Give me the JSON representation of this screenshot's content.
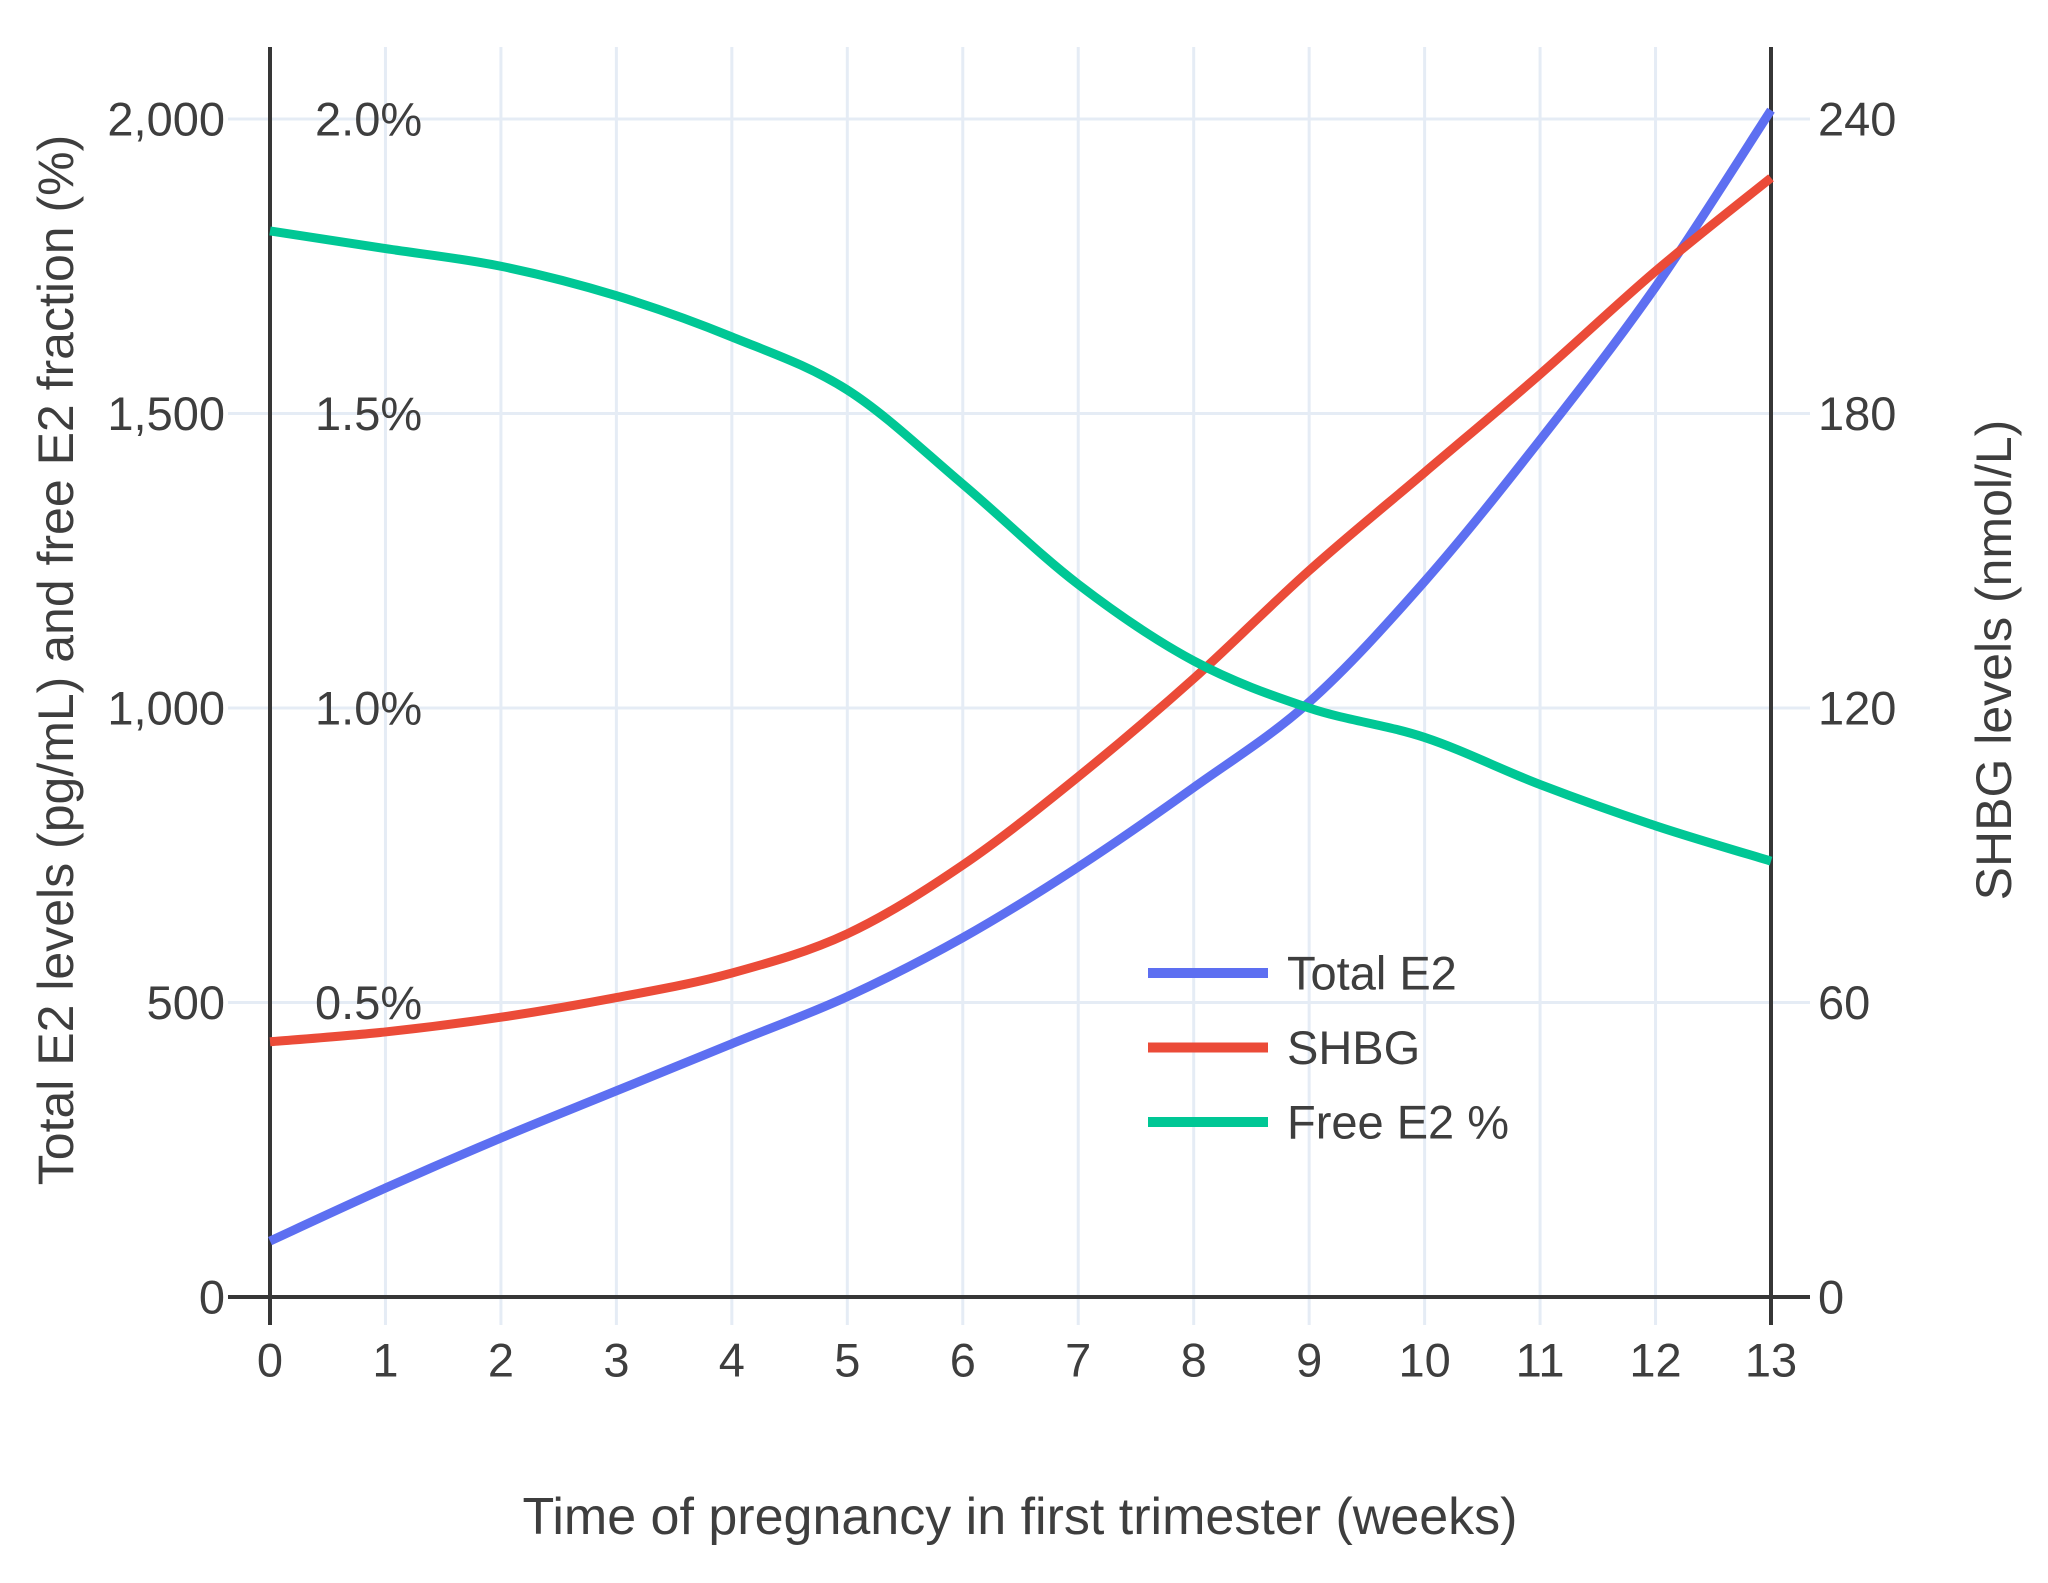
{
  "chart_data": {
    "type": "line",
    "title": "",
    "xlabel": "Time of pregnancy in first trimester (weeks)",
    "ylabel_left": "Total E2 levels (pg/mL) and free E2 fraction (%)",
    "ylabel_right": "SHBG levels (nmol/L)",
    "x": [
      0,
      1,
      2,
      3,
      4,
      5,
      6,
      7,
      8,
      9,
      10,
      11,
      12,
      13
    ],
    "x_tick_labels": [
      "0",
      "1",
      "2",
      "3",
      "4",
      "5",
      "6",
      "7",
      "8",
      "9",
      "10",
      "11",
      "12",
      "13"
    ],
    "series": [
      {
        "name": "Total E2",
        "axis": "left",
        "units": "pg/mL",
        "color": "#5D6FF1",
        "values": [
          95,
          185,
          270,
          350,
          430,
          510,
          610,
          730,
          865,
          1010,
          1215,
          1455,
          1715,
          2015
        ]
      },
      {
        "name": "SHBG",
        "axis": "right",
        "units": "nmol/L",
        "color": "#EB4B38",
        "values": [
          52,
          54,
          57,
          61,
          66,
          74,
          88,
          106,
          126,
          148,
          168,
          188,
          209,
          228
        ]
      },
      {
        "name": "Free E2 %",
        "axis": "percent",
        "units": "%",
        "color": "#00C795",
        "values": [
          1.81,
          1.78,
          1.75,
          1.7,
          1.63,
          1.54,
          1.38,
          1.21,
          1.08,
          1.0,
          0.95,
          0.87,
          0.8,
          0.74
        ]
      }
    ],
    "left_axis": {
      "tick_labels": [
        "0",
        "500",
        "1,000",
        "1,500",
        "2,000"
      ],
      "tick_values": [
        0,
        500,
        1000,
        1500,
        2000
      ],
      "range": [
        0,
        2122
      ]
    },
    "percent_axis": {
      "tick_labels": [
        "0.5%",
        "1.0%",
        "1.5%",
        "2.0%"
      ],
      "tick_values": [
        0.5,
        1.0,
        1.5,
        2.0
      ]
    },
    "right_axis": {
      "tick_labels": [
        "0",
        "60",
        "120",
        "180",
        "240"
      ],
      "tick_values": [
        0,
        60,
        120,
        180,
        240
      ],
      "range": [
        0,
        254.6
      ]
    },
    "xlim": [
      0,
      13
    ],
    "grid": true,
    "legend_position": "inside lower-right",
    "legend": [
      "Total E2",
      "SHBG",
      "Free E2 %"
    ]
  },
  "colors": {
    "background": "#ffffff",
    "gridline": "#E5ECF5",
    "axis_line": "#363636",
    "text": "#3E3E3E",
    "total_e2": "#5D6FF1",
    "shbg": "#EB4B38",
    "free_e2": "#00C795"
  }
}
